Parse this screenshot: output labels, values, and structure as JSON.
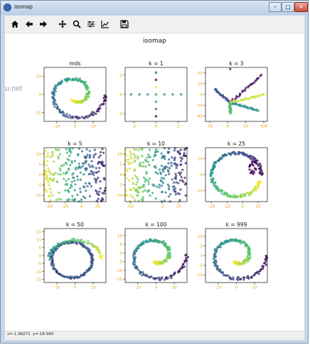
{
  "window": {
    "title": "isomap",
    "min_glyph": "–",
    "max_glyph": "□",
    "close_glyph": "✕"
  },
  "toolbar": [
    {
      "name": "home-icon"
    },
    {
      "name": "back-arrow-icon"
    },
    {
      "name": "forward-arrow-icon"
    },
    {
      "name": "pan-icon"
    },
    {
      "name": "zoom-icon"
    },
    {
      "name": "configure-subplots-icon"
    },
    {
      "name": "edit-axis-icon"
    },
    {
      "name": "save-icon"
    }
  ],
  "figure": {
    "suptitle": "isomap"
  },
  "background_text": "u.net",
  "status": {
    "coords": "x=-1.98271  y=-18.569"
  },
  "colors": {
    "tick": "#e8a000",
    "colormap": [
      "#440154",
      "#3b528b",
      "#21918c",
      "#5ec962",
      "#fde725"
    ]
  },
  "chart_data": [
    {
      "title": "mds",
      "type": "scatter",
      "pattern": "spiral",
      "xticks": [
        "-10",
        "0",
        "10"
      ],
      "yticks": [
        "10",
        "0",
        "-10"
      ],
      "xlim": [
        -17,
        17
      ],
      "ylim": [
        -15,
        15
      ]
    },
    {
      "title": "k = 1",
      "type": "scatter",
      "pattern": "cross",
      "xticks": [
        "-2",
        "0",
        "2"
      ],
      "yticks": [
        "2",
        "0",
        "-2"
      ],
      "xlim": [
        -2.8,
        2.8
      ],
      "ylim": [
        -2.8,
        2.8
      ]
    },
    {
      "title": "k = 3",
      "type": "scatter",
      "pattern": "star",
      "xticks": [
        "-50",
        "0",
        "50",
        "100"
      ],
      "yticks": [
        "40",
        "20",
        "0",
        "-20",
        "-40"
      ],
      "xlim": [
        -62,
        110
      ],
      "ylim": [
        -50,
        50
      ]
    },
    {
      "title": "k = 5",
      "type": "scatter",
      "pattern": "roll",
      "xticks": [
        "-50",
        "-25",
        "0",
        "25"
      ],
      "yticks": [
        "10",
        "5",
        "0",
        "-5",
        "-10"
      ],
      "xlim": [
        -58,
        38
      ],
      "ylim": [
        -13,
        13
      ]
    },
    {
      "title": "k = 10",
      "type": "scatter",
      "pattern": "roll",
      "xticks": [
        "-50",
        "0",
        "25"
      ],
      "yticks": [
        "10",
        "5",
        "0",
        "-5",
        "-10"
      ],
      "xlim": [
        -58,
        38
      ],
      "ylim": [
        -13,
        13
      ]
    },
    {
      "title": "k = 25",
      "type": "scatter",
      "pattern": "ring",
      "xticks": [
        "-20",
        "-10",
        "0",
        "10"
      ],
      "yticks": [
        "10",
        "0",
        "-10"
      ],
      "xlim": [
        -24,
        16
      ],
      "ylim": [
        -17,
        17
      ]
    },
    {
      "title": "k = 50",
      "type": "scatter",
      "pattern": "ring-tail",
      "xticks": [
        "-10",
        "0",
        "10"
      ],
      "yticks": [
        "15",
        "10",
        "5",
        "0",
        "-5",
        "-10",
        "-15"
      ],
      "xlim": [
        -17,
        17
      ],
      "ylim": [
        -17,
        17
      ]
    },
    {
      "title": "k = 100",
      "type": "scatter",
      "pattern": "spiral",
      "xticks": [
        "-10",
        "0",
        "10"
      ],
      "yticks": [
        "10",
        "5",
        "0",
        "-5",
        "-10",
        "-15"
      ],
      "xlim": [
        -17,
        17
      ],
      "ylim": [
        -17,
        14
      ]
    },
    {
      "title": "k = 999",
      "type": "scatter",
      "pattern": "spiral",
      "xticks": [
        "-10",
        "0",
        "10"
      ],
      "yticks": [
        "10",
        "5",
        "0",
        "-5",
        "-10"
      ],
      "xlim": [
        -17,
        17
      ],
      "ylim": [
        -14,
        14
      ]
    }
  ]
}
